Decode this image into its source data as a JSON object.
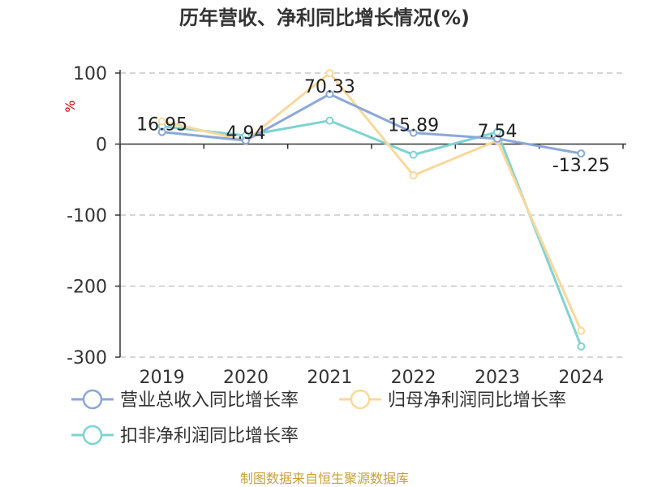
{
  "chart_data": {
    "type": "line",
    "title": "历年营收、净利同比增长情况(%)",
    "ylabel": "%",
    "categories": [
      "2019",
      "2020",
      "2021",
      "2022",
      "2023",
      "2024"
    ],
    "ylim": [
      -300,
      100
    ],
    "yticks": [
      100,
      0,
      -100,
      -200,
      -300
    ],
    "grid": true,
    "legend_position": "bottom",
    "series": [
      {
        "name": "营业总收入同比增长率",
        "color": "#8aa8d8",
        "values": [
          16.95,
          4.94,
          70.33,
          15.89,
          7.54,
          -13.25
        ],
        "labels": [
          "16.95",
          "4.94",
          "70.33",
          "15.89",
          "7.54",
          "-13.25"
        ]
      },
      {
        "name": "归母净利润同比增长率",
        "color": "#fad89a",
        "values": [
          32,
          5,
          100,
          -44,
          5,
          -263
        ]
      },
      {
        "name": "扣非净利润同比增长率",
        "color": "#7fd3d3",
        "values": [
          25,
          12,
          33,
          -15,
          17,
          -285
        ]
      }
    ],
    "source": "制图数据来自恒生聚源数据库"
  }
}
